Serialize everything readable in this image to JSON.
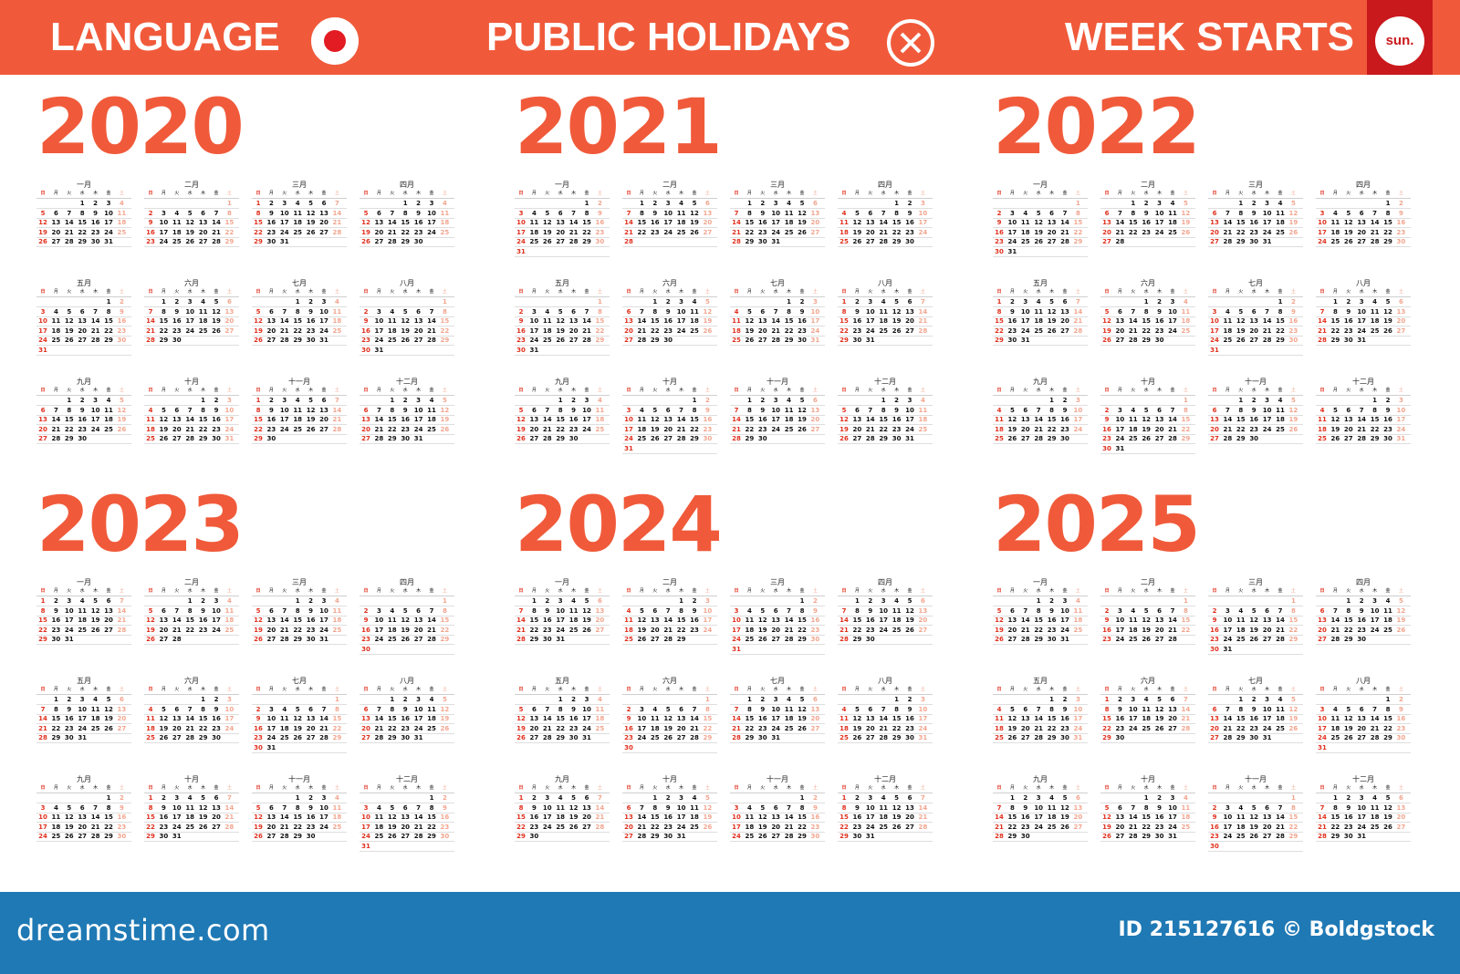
{
  "top_bar": {
    "language_label": "LANGUAGE",
    "holidays_label": "PUBLIC HOLIDAYS",
    "week_label": "WEEK STARTS",
    "week_start_value": "sun.",
    "flag_icon": "japan-flag-icon",
    "holidays_icon": "close-icon",
    "bar_color": "#f05a3a",
    "accent_color": "#c9191c"
  },
  "calendar": {
    "weekday_labels": [
      "日",
      "月",
      "火",
      "水",
      "木",
      "金",
      "土"
    ],
    "month_names": [
      "一月",
      "二月",
      "三月",
      "四月",
      "五月",
      "六月",
      "七月",
      "八月",
      "九月",
      "十月",
      "十一月",
      "十二月"
    ],
    "week_starts": "sun",
    "years": [
      "2020",
      "2021",
      "2022",
      "2023",
      "2024",
      "2025"
    ],
    "sunday_color": "#e0301e",
    "saturday_color": "#f2a58f",
    "year_color": "#f05a3a"
  },
  "bottom_bar": {
    "brand": "dreamstime.com",
    "id_text": "ID 215127616 © Boldgstock",
    "bar_color": "#1f79b5"
  }
}
